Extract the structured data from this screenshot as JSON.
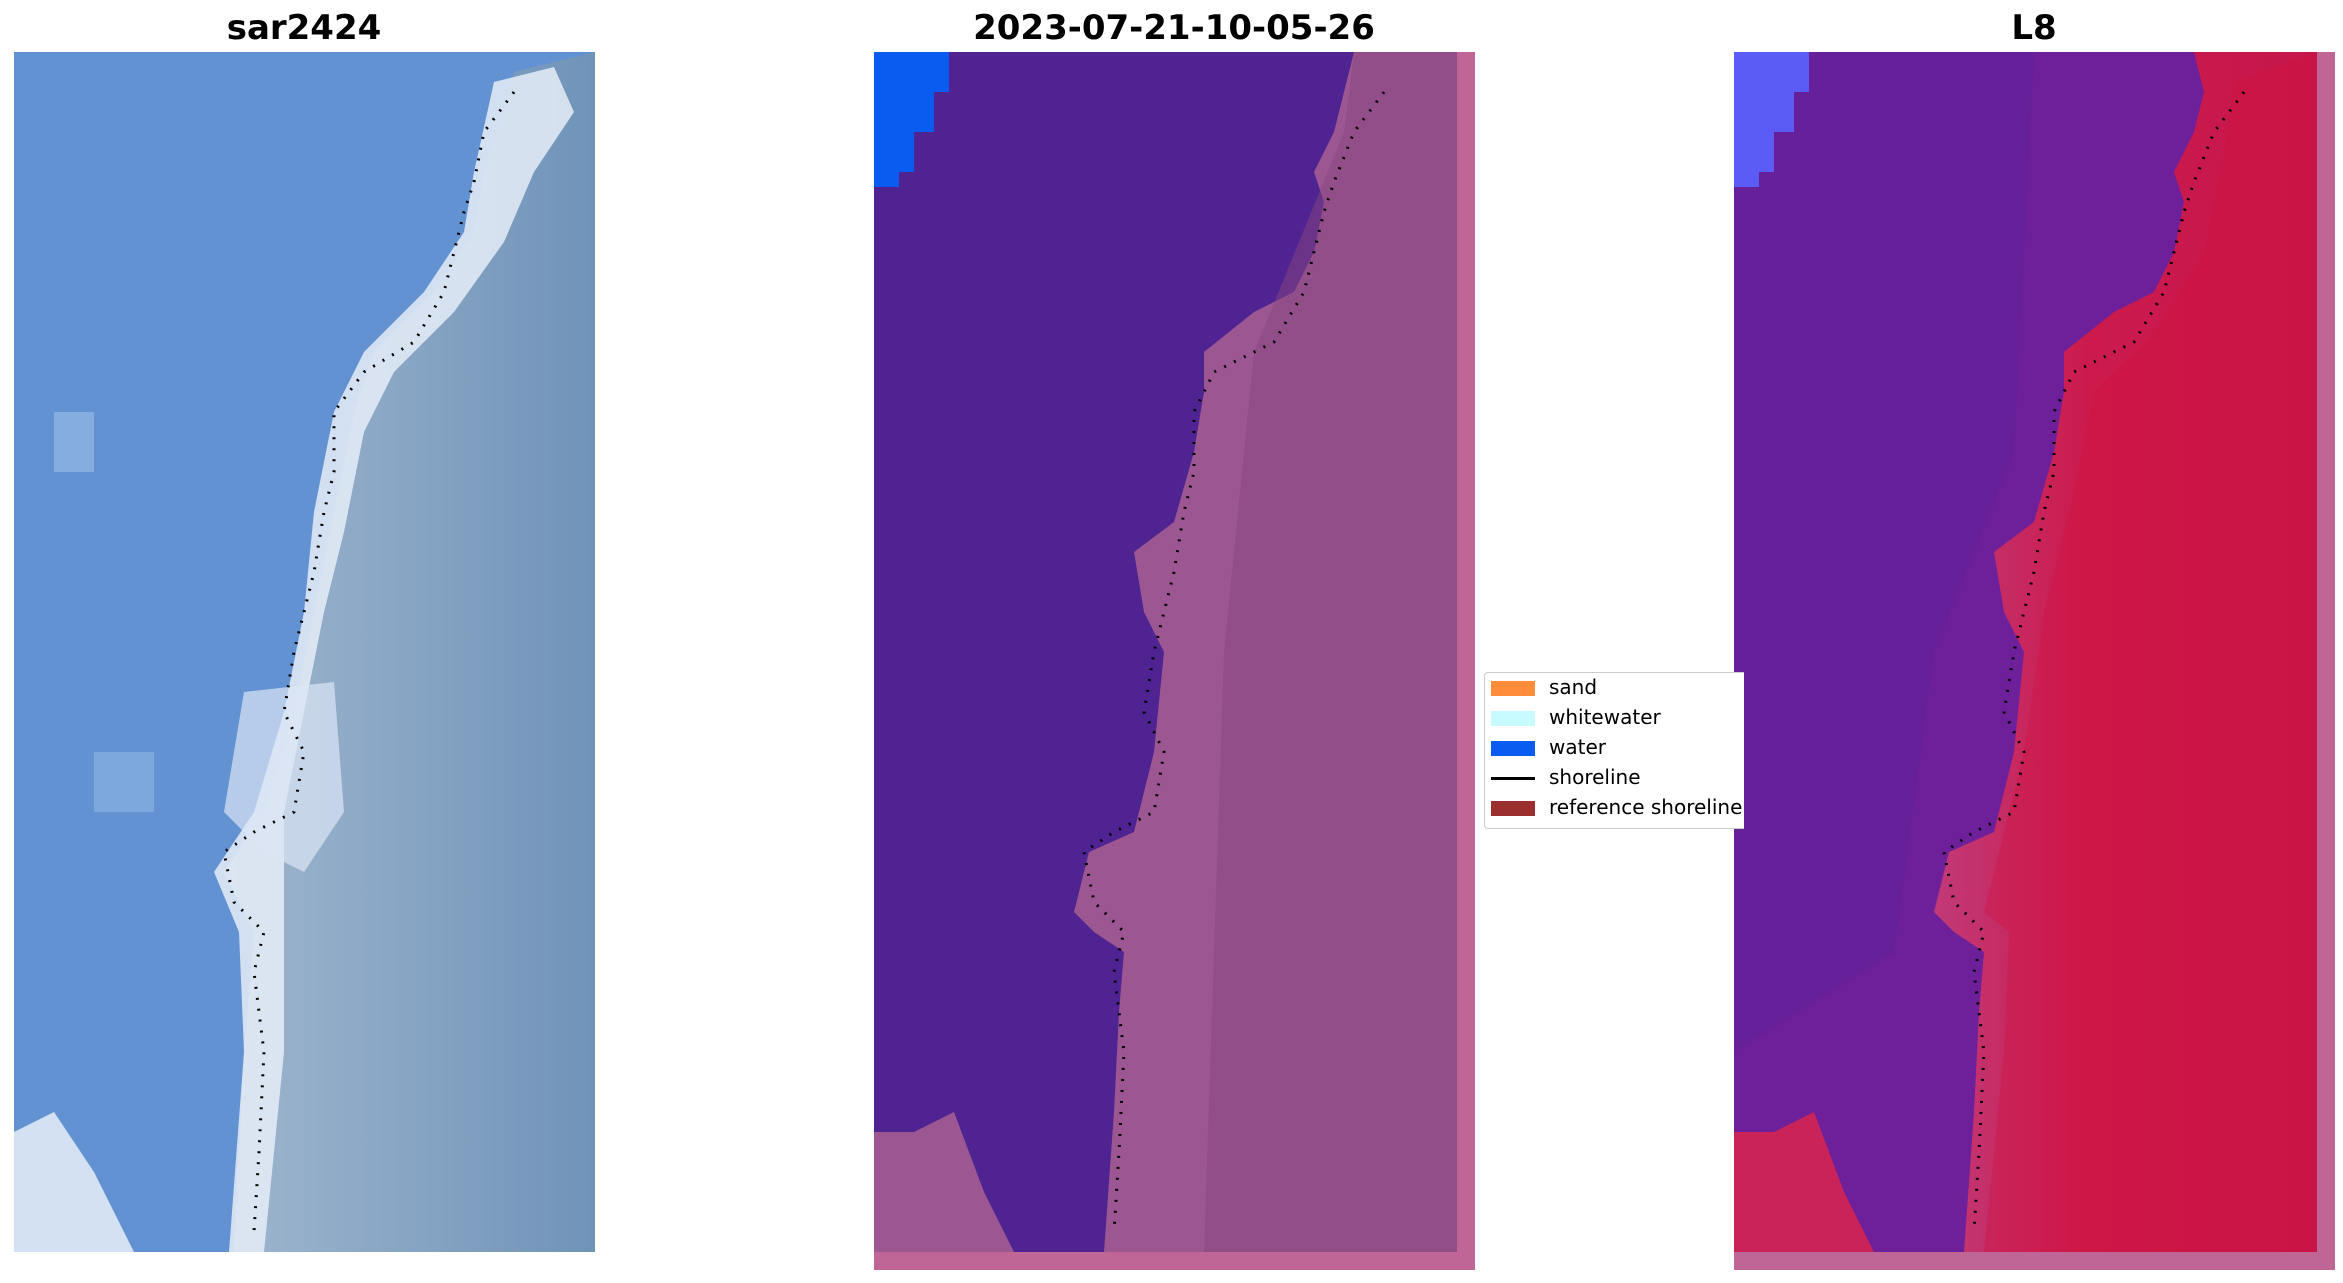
{
  "panels": [
    {
      "title": "sar2424"
    },
    {
      "title": "2023-07-21-10-05-26"
    },
    {
      "title": "L8"
    }
  ],
  "legend": {
    "items": [
      {
        "label": "sand",
        "color": "#ff8c3a",
        "kind": "patch"
      },
      {
        "label": "whitewater",
        "color": "#c8fbff",
        "kind": "patch"
      },
      {
        "label": "water",
        "color": "#0a5bf0",
        "kind": "patch"
      },
      {
        "label": "shoreline",
        "color": "#000000",
        "kind": "line"
      },
      {
        "label": "reference shoreline",
        "color": "#9b2e2e",
        "kind": "patch"
      }
    ]
  },
  "colors": {
    "rgb_water": "#5f8fd0",
    "rgb_land": "#7d9fbe",
    "rgb_surf": "#e8eef8",
    "class_water": "#4f2391",
    "class_land": "#9c5793",
    "class_border": "#c06696",
    "class_blue": "#0a5bf0",
    "ndwi_water": "#6d2099",
    "ndwi_land": "#c8174a",
    "ndwi_blue": "#5a5cf5"
  }
}
